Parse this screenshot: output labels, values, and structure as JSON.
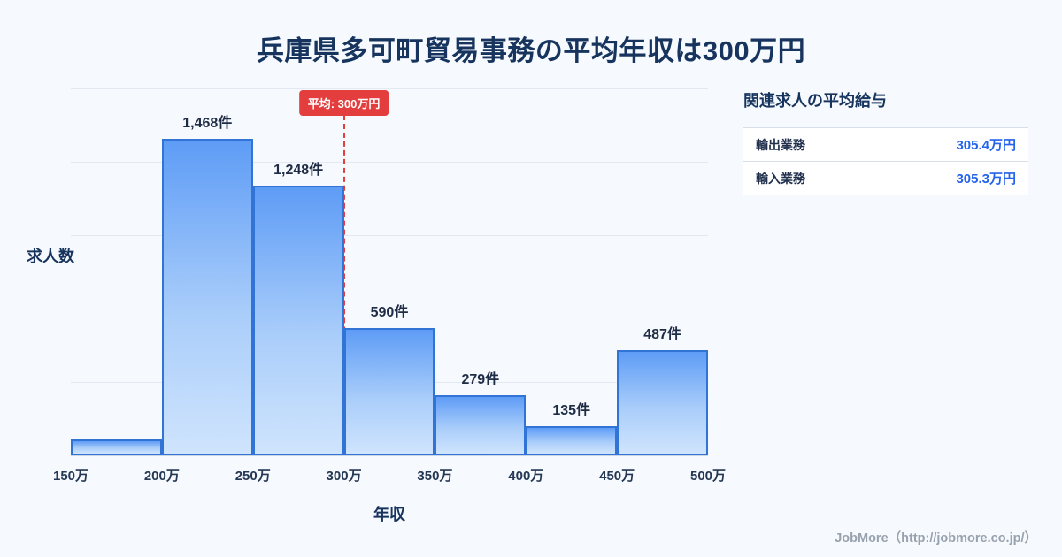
{
  "title": "兵庫県多可町貿易事務の平均年収は300万円",
  "chart_data": {
    "type": "bar",
    "title": "兵庫県多可町貿易事務の平均年収は300万円",
    "xlabel": "年収",
    "ylabel": "求人数",
    "categories": [
      "150万",
      "200万",
      "250万",
      "300万",
      "350万",
      "400万",
      "450万",
      "500万"
    ],
    "values": [
      75,
      1468,
      1248,
      590,
      279,
      135,
      487
    ],
    "bar_labels": [
      "",
      "1,468件",
      "1,248件",
      "590件",
      "279件",
      "135件",
      "487件"
    ],
    "ylim": [
      0,
      1700
    ],
    "grid": true,
    "average_line": {
      "x": "300万",
      "label": "平均: 300万円",
      "color": "#e43d3d"
    }
  },
  "side_panel": {
    "heading": "関連求人の平均給与",
    "rows": [
      {
        "label": "輸出業務",
        "value": "305.4万円"
      },
      {
        "label": "輸入業務",
        "value": "305.3万円"
      }
    ]
  },
  "footer": {
    "credit": "JobMore（http://jobmore.co.jp/）"
  },
  "colors": {
    "background": "#f6f9fd",
    "title": "#17345e",
    "bar_top": "#5e9cf6",
    "bar_bottom": "#cfe4fd",
    "bar_border": "#3273d6",
    "average": "#e43d3d",
    "value_blue": "#2563eb"
  }
}
